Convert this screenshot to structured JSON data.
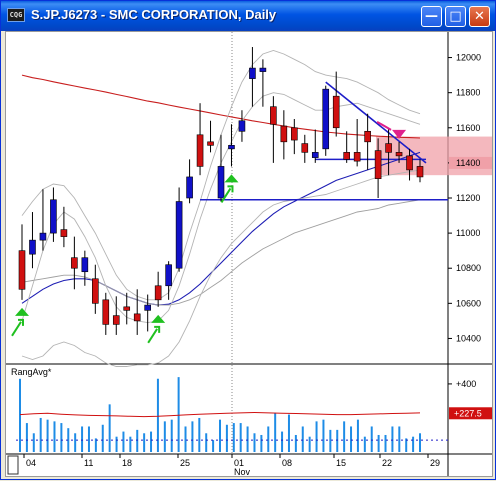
{
  "window": {
    "title": "S.JP.J6273 - SMC CORPORATION, Daily",
    "app_icon_label": "CQG",
    "buttons": [
      "minimize-icon",
      "maximize-icon",
      "close-icon"
    ]
  },
  "chart_data": [
    {
      "type": "candlestick",
      "symbol": "S.JP.J6273",
      "price_ticks": [
        10400,
        10600,
        10800,
        11000,
        11200,
        11400,
        11600,
        11800,
        12000
      ],
      "highlighted_price": 11400,
      "date_ticks": [
        "04",
        "11",
        "18",
        "25",
        "01",
        "08",
        "15",
        "22",
        "29"
      ],
      "month_label": "Nov",
      "candles": [
        {
          "o": 10900,
          "h": 11050,
          "l": 10620,
          "c": 10680
        },
        {
          "o": 10880,
          "h": 11120,
          "l": 10800,
          "c": 10960
        },
        {
          "o": 10960,
          "h": 11250,
          "l": 10900,
          "c": 11000
        },
        {
          "o": 11000,
          "h": 11260,
          "l": 10950,
          "c": 11190
        },
        {
          "o": 11020,
          "h": 11150,
          "l": 10920,
          "c": 10980
        },
        {
          "o": 10860,
          "h": 10980,
          "l": 10680,
          "c": 10800
        },
        {
          "o": 10780,
          "h": 10900,
          "l": 10700,
          "c": 10860
        },
        {
          "o": 10740,
          "h": 10820,
          "l": 10540,
          "c": 10600
        },
        {
          "o": 10620,
          "h": 10660,
          "l": 10420,
          "c": 10480
        },
        {
          "o": 10530,
          "h": 10640,
          "l": 10420,
          "c": 10480
        },
        {
          "o": 10580,
          "h": 10660,
          "l": 10480,
          "c": 10560
        },
        {
          "o": 10540,
          "h": 10680,
          "l": 10420,
          "c": 10500
        },
        {
          "o": 10560,
          "h": 10650,
          "l": 10440,
          "c": 10590
        },
        {
          "o": 10700,
          "h": 10780,
          "l": 10580,
          "c": 10620
        },
        {
          "o": 10700,
          "h": 10840,
          "l": 10620,
          "c": 10820
        },
        {
          "o": 10800,
          "h": 11260,
          "l": 10780,
          "c": 11180
        },
        {
          "o": 11200,
          "h": 11420,
          "l": 11170,
          "c": 11320
        },
        {
          "o": 11560,
          "h": 11740,
          "l": 11330,
          "c": 11380
        },
        {
          "o": 11520,
          "h": 11640,
          "l": 11460,
          "c": 11500
        },
        {
          "o": 11200,
          "h": 11560,
          "l": 11180,
          "c": 11380
        },
        {
          "o": 11480,
          "h": 11620,
          "l": 11380,
          "c": 11500
        },
        {
          "o": 11580,
          "h": 11700,
          "l": 11520,
          "c": 11640
        },
        {
          "o": 11880,
          "h": 12060,
          "l": 11720,
          "c": 11940
        },
        {
          "o": 11920,
          "h": 11990,
          "l": 11720,
          "c": 11940
        },
        {
          "o": 11720,
          "h": 11780,
          "l": 11400,
          "c": 11620
        },
        {
          "o": 11610,
          "h": 11700,
          "l": 11420,
          "c": 11520
        },
        {
          "o": 11600,
          "h": 11650,
          "l": 11450,
          "c": 11530
        },
        {
          "o": 11510,
          "h": 11560,
          "l": 11400,
          "c": 11460
        },
        {
          "o": 11430,
          "h": 11590,
          "l": 11400,
          "c": 11460
        },
        {
          "o": 11480,
          "h": 11840,
          "l": 11440,
          "c": 11820
        },
        {
          "o": 11780,
          "h": 11920,
          "l": 11550,
          "c": 11600
        },
        {
          "o": 11460,
          "h": 11580,
          "l": 11400,
          "c": 11420
        },
        {
          "o": 11460,
          "h": 11650,
          "l": 11380,
          "c": 11410
        },
        {
          "o": 11580,
          "h": 11680,
          "l": 11360,
          "c": 11520
        },
        {
          "o": 11470,
          "h": 11540,
          "l": 11200,
          "c": 11310
        },
        {
          "o": 11510,
          "h": 11600,
          "l": 11330,
          "c": 11460
        },
        {
          "o": 11460,
          "h": 11520,
          "l": 11400,
          "c": 11440
        },
        {
          "o": 11440,
          "h": 11480,
          "l": 11300,
          "c": 11360
        },
        {
          "o": 11380,
          "h": 11420,
          "l": 11290,
          "c": 11320
        }
      ],
      "up_color": "#1010C8",
      "down_color": "#D01010",
      "moving_averages": [
        {
          "color": "#C81E1E",
          "values": [
            11900,
            11885,
            11875,
            11862,
            11850,
            11838,
            11826,
            11815,
            11803,
            11790,
            11778,
            11765,
            11752,
            11742,
            11730,
            11718,
            11707,
            11696,
            11685,
            11673,
            11662,
            11651,
            11640,
            11630,
            11620,
            11610,
            11600,
            11592,
            11584,
            11576,
            11570,
            11564,
            11560,
            11556,
            11552,
            11549,
            11546,
            11544,
            11542
          ]
        },
        {
          "color": "#1E1EB4",
          "values": [
            10600,
            10640,
            10680,
            10710,
            10730,
            10740,
            10740,
            10730,
            10700,
            10670,
            10640,
            10620,
            10600,
            10590,
            10595,
            10620,
            10660,
            10710,
            10770,
            10830,
            10890,
            10950,
            11010,
            11060,
            11110,
            11150,
            11180,
            11210,
            11240,
            11270,
            11300,
            11320,
            11340,
            11360,
            11380,
            11400,
            11420,
            11440,
            11460
          ]
        },
        {
          "color": "#A0A0A0",
          "values": [
            10720,
            10730,
            10740,
            10750,
            10760,
            10760,
            10750,
            10730,
            10700,
            10670,
            10640,
            10620,
            10600,
            10590,
            10590,
            10600,
            10620,
            10650,
            10690,
            10730,
            10780,
            10830,
            10870,
            10910,
            10940,
            10970,
            11000,
            11020,
            11040,
            11060,
            11080,
            11100,
            11120,
            11130,
            11140,
            11160,
            11170,
            11180,
            11190
          ]
        },
        {
          "color": "#B4B4B4",
          "values": [
            10500,
            10700,
            10900,
            11050,
            11120,
            11080,
            10980,
            10860,
            10700,
            10580,
            10520,
            10500,
            10490,
            10500,
            10560,
            10700,
            10880,
            11080,
            11250,
            11400,
            11520,
            11640,
            11720,
            11780,
            11800,
            11790,
            11760,
            11730,
            11700,
            11700,
            11720,
            11730,
            11740,
            11720,
            11700,
            11680,
            11660,
            11640,
            11620
          ]
        },
        {
          "color": "#B4B4B4",
          "values": [
            11100,
            11180,
            11250,
            11280,
            11270,
            11200,
            11100,
            11000,
            10880,
            10760,
            10680,
            10640,
            10620,
            10620,
            10660,
            10800,
            11000,
            11180,
            11380,
            11560,
            11720,
            11860,
            11960,
            12020,
            12040,
            12020,
            11990,
            11960,
            11920,
            11900,
            11890,
            11880,
            11860,
            11830,
            11800,
            11760,
            11730,
            11700,
            11680
          ]
        },
        {
          "color": "#B4B4B4",
          "values": [
            10300,
            10280,
            10300,
            10360,
            10380,
            10360,
            10320,
            10300,
            10260,
            10240,
            10240,
            10250,
            10250,
            10260,
            10300,
            10380,
            10500,
            10640,
            10760,
            10860,
            10940,
            11000,
            11060,
            11120,
            11160,
            11180,
            11190,
            11200,
            11210,
            11220,
            11240,
            11260,
            11280,
            11300,
            11320,
            11330,
            11340,
            11350,
            11360
          ]
        }
      ],
      "horizontal_lines": [
        {
          "price": 11190,
          "from_index": 17,
          "color": "#1E1EC8"
        },
        {
          "price": 11420,
          "from_index": 28,
          "to_index": 38,
          "color": "#1E1EC8"
        }
      ],
      "trend_line": {
        "from_index": 29,
        "from_price": 11860,
        "to_index": 38,
        "to_price": 11400,
        "color": "#1E1EC8"
      },
      "resistance_zone": {
        "low": 11330,
        "high": 11550,
        "color": "#F0A0A8"
      },
      "signal_markers": [
        {
          "index": 0,
          "type": "buy",
          "color": "#20C020"
        },
        {
          "index": 13,
          "type": "buy",
          "color": "#20C020"
        },
        {
          "index": 20,
          "type": "buy",
          "color": "#20C020"
        },
        {
          "index": 36,
          "type": "sell",
          "color": "#E0208C"
        }
      ]
    },
    {
      "type": "bar",
      "title": "RangAvg*",
      "y_ticks": [
        "+400"
      ],
      "current_value_label": "+227.5",
      "values": [
        430,
        170,
        110,
        200,
        190,
        180,
        170,
        140,
        110,
        150,
        150,
        80,
        160,
        280,
        90,
        120,
        90,
        130,
        110,
        120,
        430,
        180,
        190,
        440,
        150,
        180,
        200,
        110,
        70,
        190,
        160,
        170,
        170,
        150,
        110,
        100,
        150,
        230,
        120,
        220,
        100,
        150,
        90,
        180,
        190,
        130,
        130,
        180,
        150,
        190,
        90,
        150,
        100,
        100,
        150,
        150,
        80,
        90,
        110
      ],
      "bar_color": "#1E8CE6",
      "avg_values": [
        220,
        225,
        228,
        222,
        218,
        215,
        214,
        212,
        210,
        208,
        210,
        214,
        218,
        222,
        225,
        228,
        230,
        232,
        230,
        228,
        226,
        224,
        222,
        220,
        220,
        222,
        224,
        226,
        228,
        230
      ],
      "avg_color": "#D01010"
    }
  ]
}
